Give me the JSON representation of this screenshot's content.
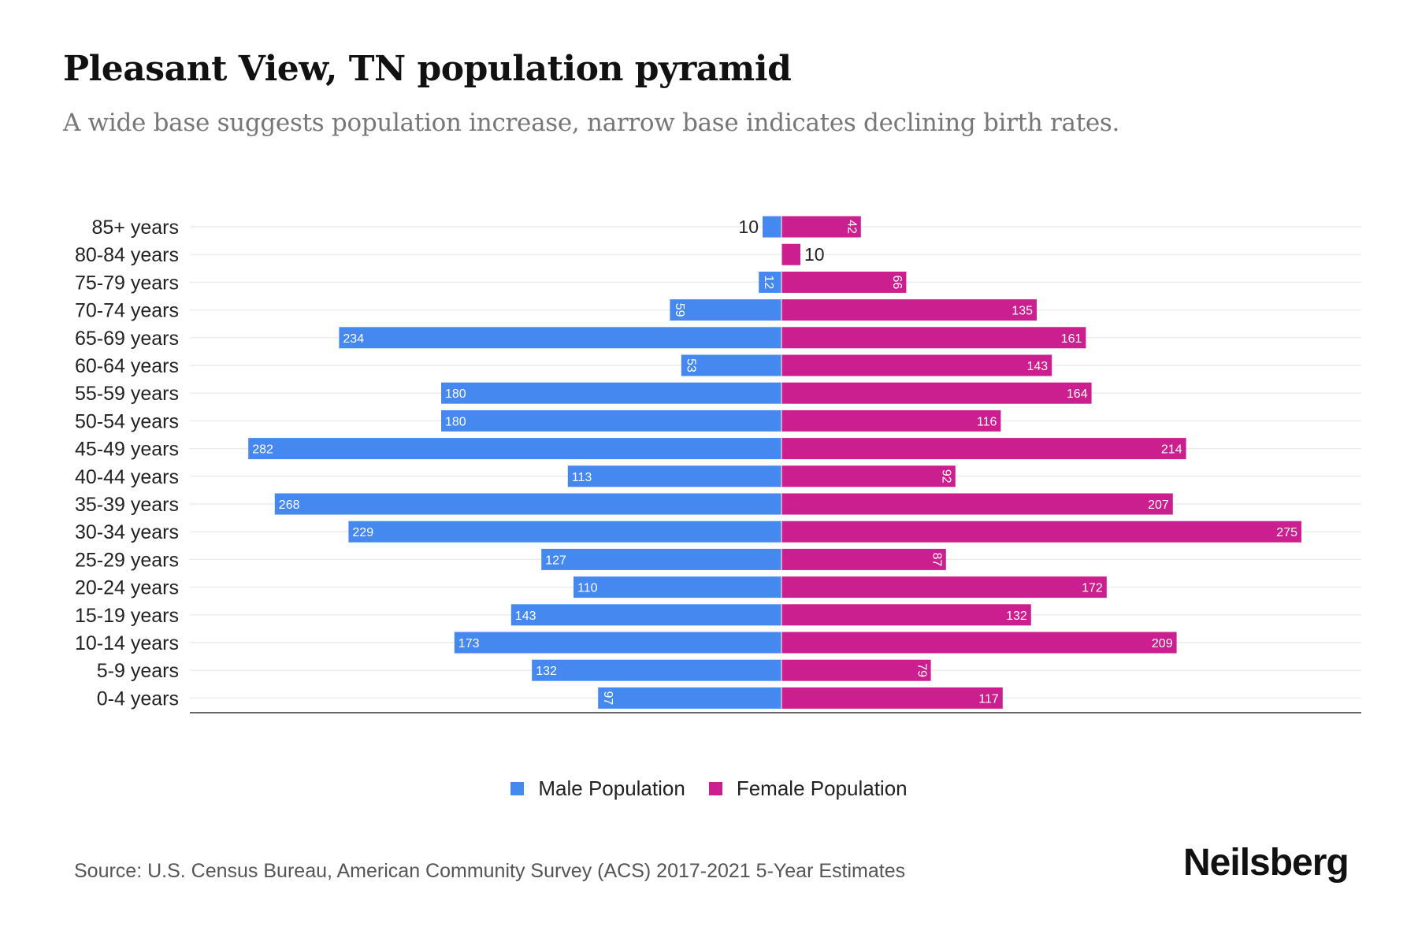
{
  "title": "Pleasant View, TN population pyramid",
  "subtitle": "A wide base suggests population increase, narrow base indicates declining birth rates.",
  "source": "Source: U.S. Census Bureau, American Community Survey (ACS) 2017-2021 5-Year Estimates",
  "logo": "Neilsberg",
  "colors": {
    "male": "#4488F0",
    "female": "#CC1F8F"
  },
  "chart_data": {
    "type": "bar",
    "orientation": "horizontal-pyramid",
    "categories": [
      "85+ years",
      "80-84 years",
      "75-79 years",
      "70-74 years",
      "65-69 years",
      "60-64 years",
      "55-59 years",
      "50-54 years",
      "45-49 years",
      "40-44 years",
      "35-39 years",
      "30-34 years",
      "25-29 years",
      "20-24 years",
      "15-19 years",
      "10-14 years",
      "5-9 years",
      "0-4 years"
    ],
    "series": [
      {
        "name": "Male Population",
        "values": [
          10,
          0,
          12,
          59,
          234,
          53,
          180,
          180,
          282,
          113,
          268,
          229,
          127,
          110,
          143,
          173,
          132,
          97
        ]
      },
      {
        "name": "Female Population",
        "values": [
          42,
          10,
          66,
          135,
          161,
          143,
          164,
          116,
          214,
          92,
          207,
          275,
          87,
          172,
          132,
          209,
          79,
          117
        ]
      }
    ],
    "legend": "bottom-center",
    "grid": true
  }
}
